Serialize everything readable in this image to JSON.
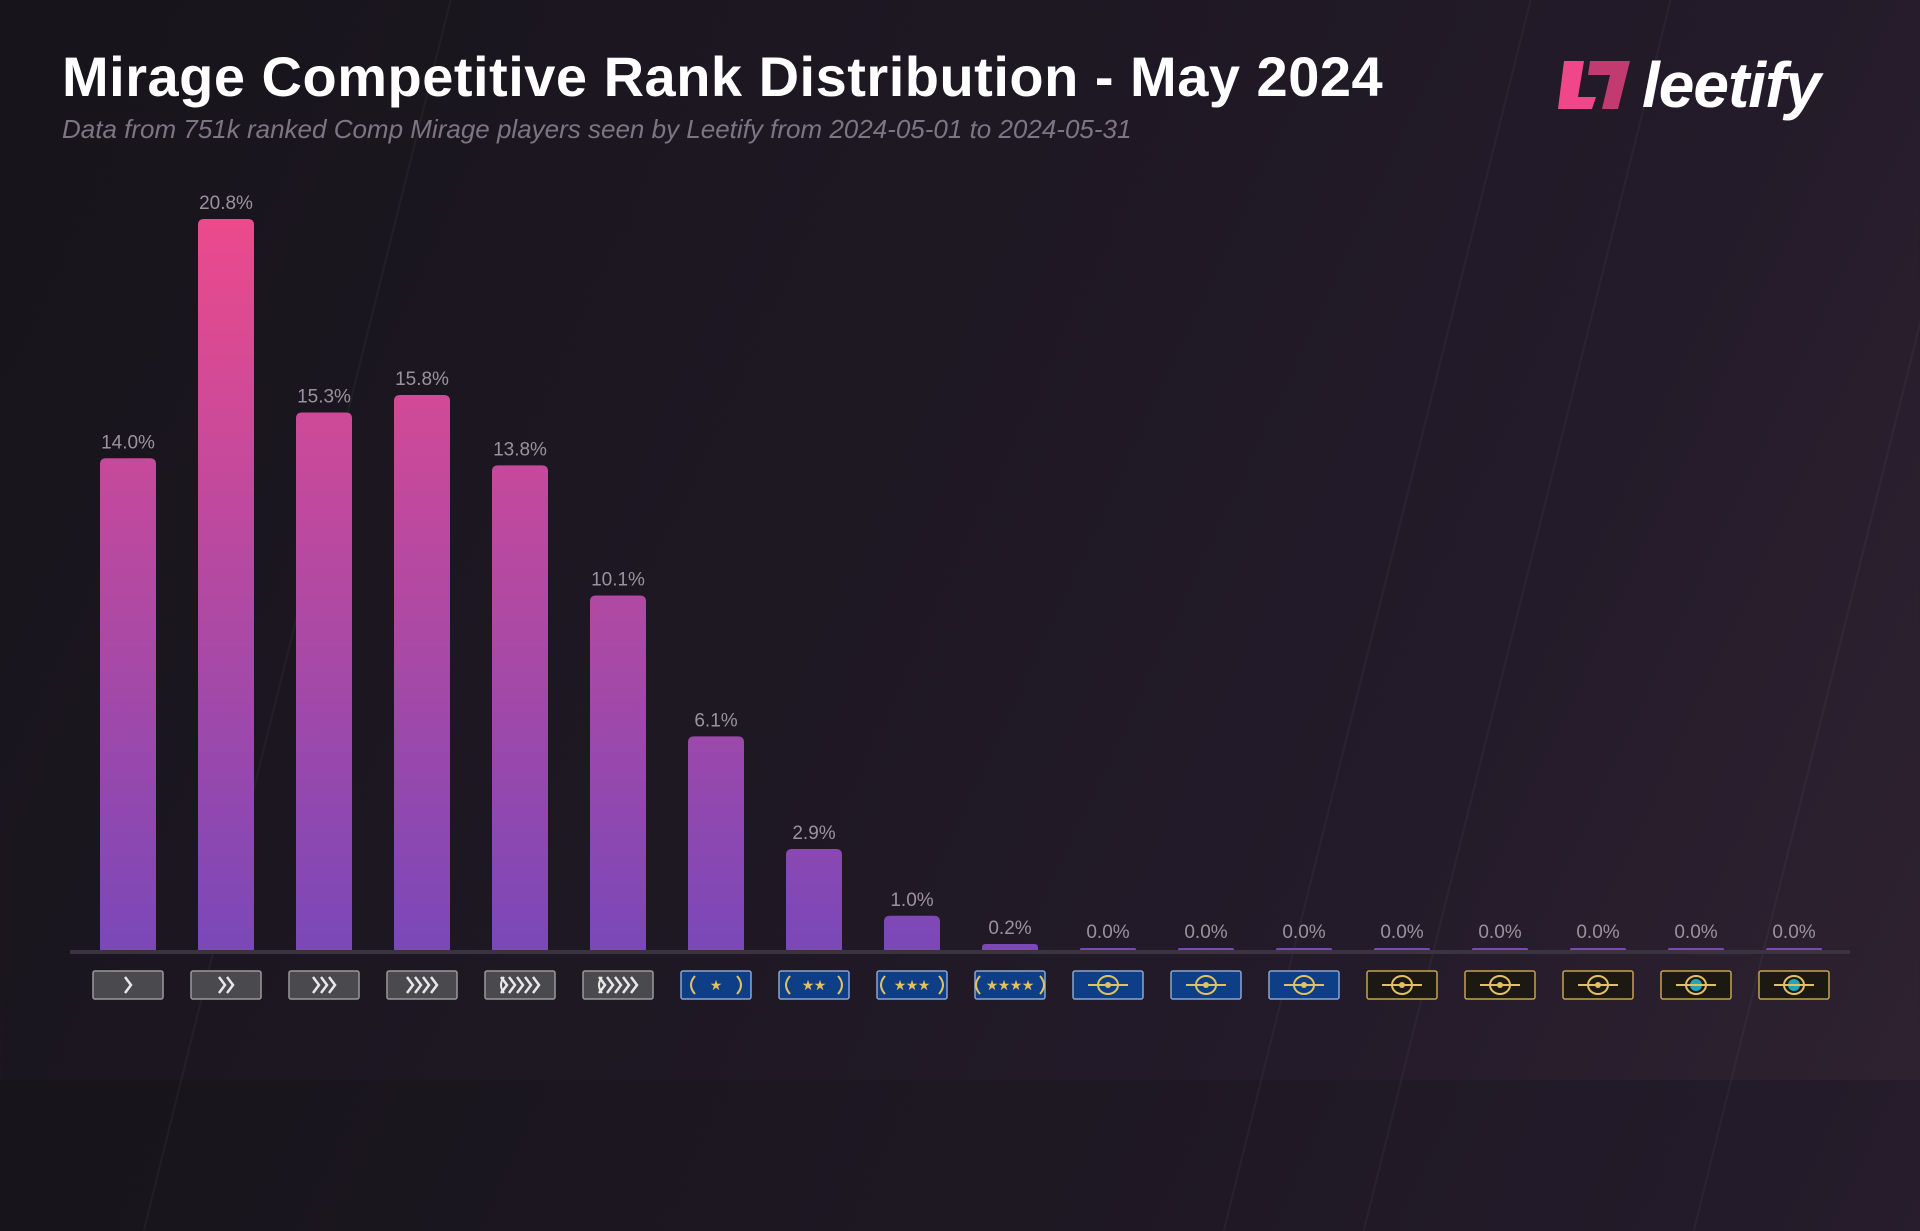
{
  "title": "Mirage Competitive Rank Distribution - May 2024",
  "subtitle": "Data from 751k ranked Comp Mirage players seen by Leetify from 2024-05-01 to 2024-05-31",
  "logo": {
    "text": "leetify",
    "color": "#f0468a"
  },
  "chart_data": {
    "type": "bar",
    "title": "Mirage Competitive Rank Distribution - May 2024",
    "categories": [
      "silver-1-icon",
      "silver-2-icon",
      "silver-3-icon",
      "silver-4-icon",
      "silver-elite-icon",
      "silver-elite-master-icon",
      "gold-nova-1-icon",
      "gold-nova-2-icon",
      "gold-nova-3-icon",
      "gold-nova-master-icon",
      "master-guardian-1-icon",
      "master-guardian-2-icon",
      "master-guardian-elite-icon",
      "distinguished-master-guardian-icon",
      "legendary-eagle-icon",
      "legendary-eagle-master-icon",
      "supreme-master-first-class-icon",
      "global-elite-icon"
    ],
    "values": [
      14.0,
      20.8,
      15.3,
      15.8,
      13.8,
      10.1,
      6.1,
      2.9,
      1.0,
      0.2,
      0.0,
      0.0,
      0.0,
      0.0,
      0.0,
      0.0,
      0.0,
      0.0
    ],
    "labels": [
      "14.0%",
      "20.8%",
      "15.3%",
      "15.8%",
      "13.8%",
      "10.1%",
      "6.1%",
      "2.9%",
      "1.0%",
      "0.2%",
      "0.0%",
      "0.0%",
      "0.0%",
      "0.0%",
      "0.0%",
      "0.0%",
      "0.0%",
      "0.0%"
    ],
    "ylim": [
      0,
      20.8
    ],
    "grid": false,
    "colors": {
      "top": "#ec4a8c",
      "bottom": "#7a48b8"
    }
  }
}
